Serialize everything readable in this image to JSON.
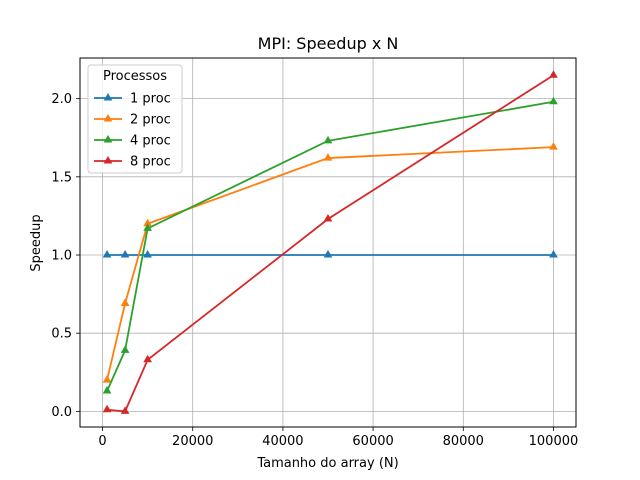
{
  "chart_data": {
    "type": "line",
    "title": "MPI: Speedup x N",
    "xlabel": "Tamanho do array (N)",
    "ylabel": "Speedup",
    "xlim": [
      -5000,
      105000
    ],
    "ylim": [
      -0.1,
      2.26
    ],
    "xticks": [
      0,
      20000,
      40000,
      60000,
      80000,
      100000
    ],
    "yticks": [
      0.0,
      0.5,
      1.0,
      1.5,
      2.0
    ],
    "xtick_labels": [
      "0",
      "20000",
      "40000",
      "60000",
      "80000",
      "100000"
    ],
    "ytick_labels": [
      "0.0",
      "0.5",
      "1.0",
      "1.5",
      "2.0"
    ],
    "grid": true,
    "marker": "triangle",
    "legend": {
      "title": "Processos",
      "position": "top-left"
    },
    "x": [
      1000,
      5000,
      10000,
      50000,
      100000
    ],
    "series": [
      {
        "name": "1 proc",
        "color": "#1f77b4",
        "values": [
          1.0,
          1.0,
          1.0,
          1.0,
          1.0
        ]
      },
      {
        "name": "2 proc",
        "color": "#ff7f0e",
        "values": [
          0.2,
          0.69,
          1.2,
          1.62,
          1.69
        ]
      },
      {
        "name": "4 proc",
        "color": "#2ca02c",
        "values": [
          0.13,
          0.39,
          1.17,
          1.73,
          1.98
        ]
      },
      {
        "name": "8 proc",
        "color": "#d62728",
        "values": [
          0.01,
          0.0,
          0.33,
          1.23,
          2.15
        ]
      }
    ]
  }
}
